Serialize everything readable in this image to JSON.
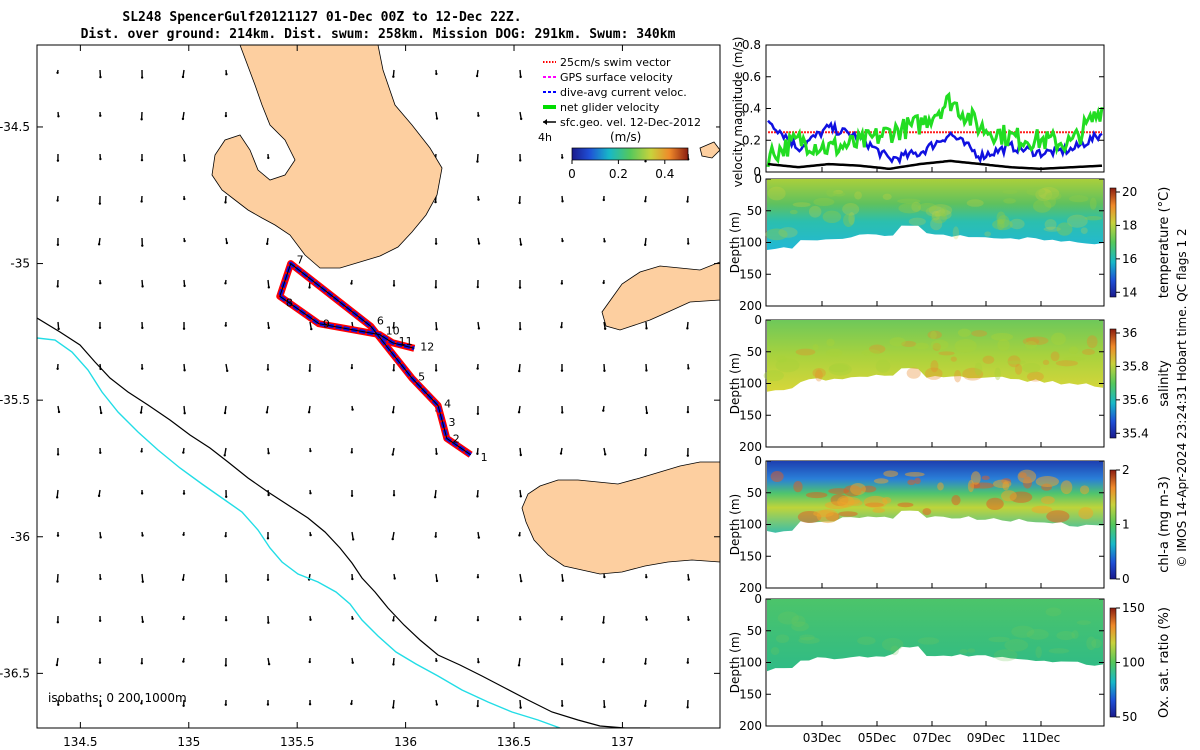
{
  "title": {
    "line1": "SL248 SpencerGulf20121127 01-Dec 00Z to 12-Dec 22Z.",
    "line2": "Dist. over ground: 214km. Dist. swum: 258km. Mission DOG: 291km. Swum: 340km"
  },
  "map": {
    "xticks": [
      "134.5",
      "135",
      "135.5",
      "136",
      "136.5",
      "137"
    ],
    "yticks": [
      "-34.5",
      "-35",
      "-35.5",
      "-36",
      "-36.5"
    ],
    "isobath_label": "isobaths: 0   200  1000m",
    "timer_label": "4h",
    "legend": [
      {
        "label": "25cm/s swim vector",
        "color": "#ff0000",
        "style": "dotted"
      },
      {
        "label": "GPS surface velocity",
        "color": "#ff00ff",
        "style": "dash"
      },
      {
        "label": "dive-avg current veloc.",
        "color": "#0000ff",
        "style": "dash"
      },
      {
        "label": "net glider velocity",
        "color": "#00dd00",
        "style": "thick"
      },
      {
        "label": "sfc.geo. vel. 12-Dec-2012",
        "color": "#000000",
        "style": "arrow"
      }
    ],
    "colorbar": {
      "unit": "(m/s)",
      "ticks": [
        "0",
        "0.2",
        "0.4"
      ],
      "range": [
        0,
        0.5
      ]
    },
    "waypoints": [
      {
        "label": "1",
        "lon": 136.3,
        "lat": -35.7
      },
      {
        "label": "2",
        "lon": 136.19,
        "lat": -35.64
      },
      {
        "label": "3",
        "lon": 136.17,
        "lat": -35.58
      },
      {
        "label": "4",
        "lon": 136.15,
        "lat": -35.52
      },
      {
        "label": "5",
        "lon": 136.03,
        "lat": -35.42
      },
      {
        "label": "6",
        "lon": 135.84,
        "lat": -35.23
      },
      {
        "label": "7",
        "lon": 135.47,
        "lat": -35.0
      },
      {
        "label": "8",
        "lon": 135.42,
        "lat": -35.12
      },
      {
        "label": "9",
        "lon": 135.6,
        "lat": -35.22
      },
      {
        "label": "10",
        "lon": 135.88,
        "lat": -35.26
      },
      {
        "label": "11",
        "lon": 135.94,
        "lat": -35.29
      },
      {
        "label": "12",
        "lon": 136.04,
        "lat": -35.31
      }
    ]
  },
  "velocity_panel": {
    "ylabel": "velocity magnitude (m/s)",
    "yticks": [
      "0",
      "0.2",
      "0.4",
      "0.6",
      "0.8"
    ],
    "ylim": [
      0,
      0.8
    ]
  },
  "sections": [
    {
      "clabel": "temperature (°C)",
      "cticks": [
        "20",
        "18",
        "16",
        "14"
      ]
    },
    {
      "clabel": "salinity",
      "cticks": [
        "36",
        "35.8",
        "35.6",
        "35.4"
      ]
    },
    {
      "clabel": "chl-a (mg m-3)",
      "cticks": [
        "2",
        "1",
        "0"
      ]
    },
    {
      "clabel": "Ox. sat. ratio (%)",
      "cticks": [
        "150",
        "100",
        "50"
      ]
    }
  ],
  "depth_label": "Depth (m)",
  "depth_ticks": [
    "0",
    "50",
    "100",
    "150",
    "200"
  ],
  "time_ticks": [
    "03Dec",
    "05Dec",
    "07Dec",
    "09Dec",
    "11Dec"
  ],
  "side_note": "© IMOS 14-Apr-2024 23:24:31 Hobart time. QC flags 1  2",
  "chart_data": {
    "type": "line",
    "x": [
      "01Dec",
      "02Dec",
      "03Dec",
      "04Dec",
      "05Dec",
      "06Dec",
      "07Dec",
      "08Dec",
      "09Dec",
      "10Dec",
      "11Dec",
      "12Dec"
    ],
    "series": [
      {
        "name": "25cm/s swim vector",
        "values": [
          0.25,
          0.25,
          0.25,
          0.25,
          0.25,
          0.25,
          0.25,
          0.25,
          0.25,
          0.25,
          0.25,
          0.25
        ]
      },
      {
        "name": "dive-avg current veloc.",
        "values": [
          0.33,
          0.15,
          0.28,
          0.22,
          0.08,
          0.12,
          0.24,
          0.1,
          0.16,
          0.12,
          0.14,
          0.24
        ]
      },
      {
        "name": "net glider velocity",
        "values": [
          0.1,
          0.2,
          0.15,
          0.18,
          0.25,
          0.3,
          0.45,
          0.28,
          0.22,
          0.2,
          0.18,
          0.4
        ]
      },
      {
        "name": "sfc.geo. vel. 12-Dec-2012",
        "values": [
          0.05,
          0.03,
          0.05,
          0.04,
          0.02,
          0.05,
          0.07,
          0.05,
          0.03,
          0.02,
          0.03,
          0.04
        ]
      }
    ],
    "ylim": [
      0,
      0.8
    ]
  }
}
